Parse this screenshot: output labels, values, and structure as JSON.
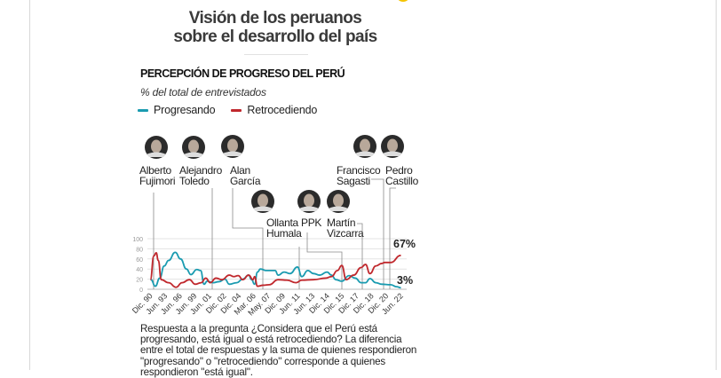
{
  "title_line1": "Visión de los peruanos",
  "title_line2": "sobre el desarrollo del país",
  "chart_data": {
    "type": "line",
    "title": "PERCEPCIÓN DE PROGRESO DEL PERÚ",
    "subtitle": "% del total de entrevistados",
    "ylim": [
      0,
      100
    ],
    "yticks": [
      "0",
      "20",
      "40",
      "60",
      "80",
      "100"
    ],
    "grid": "horizontal",
    "legend_placement": "top-left",
    "x_labels": [
      "Dic. 90",
      "Jun. 93",
      "Jun. 96",
      "Jun. 99",
      "Jun. 01",
      "Dic. 02",
      "Dic. 04",
      "Mar. 06",
      "May. 07",
      "Dic. 09",
      "Jun. 11",
      "Jun. 13",
      "Dic. 14",
      "Dic. 15",
      "Dic. 17",
      "Dic. 18",
      "Dic. 20",
      "Jun. 22"
    ],
    "series": [
      {
        "name": "Progresando",
        "color": "#1a9bb0",
        "end_label": "3%",
        "points": [
          [
            0.04,
            19
          ],
          [
            0.34,
            6
          ],
          [
            0.64,
            22
          ],
          [
            0.94,
            46
          ],
          [
            1.24,
            57
          ],
          [
            1.69,
            73
          ],
          [
            2.05,
            60
          ],
          [
            2.45,
            40
          ],
          [
            2.75,
            29
          ],
          [
            3.15,
            39
          ],
          [
            3.41,
            37
          ],
          [
            3.65,
            10
          ],
          [
            3.86,
            16
          ],
          [
            4.26,
            13
          ],
          [
            4.66,
            15
          ],
          [
            5.06,
            20
          ],
          [
            5.36,
            10
          ],
          [
            5.86,
            13
          ],
          [
            6.27,
            20
          ],
          [
            6.67,
            28
          ],
          [
            6.87,
            19
          ],
          [
            7.07,
            10
          ],
          [
            7.27,
            34
          ],
          [
            7.47,
            40
          ],
          [
            7.87,
            37
          ],
          [
            8.47,
            37
          ],
          [
            8.67,
            28
          ],
          [
            9.08,
            34
          ],
          [
            9.48,
            31
          ],
          [
            9.98,
            44
          ],
          [
            10.28,
            25
          ],
          [
            10.68,
            37
          ],
          [
            11.08,
            31
          ],
          [
            11.49,
            28
          ],
          [
            11.99,
            34
          ],
          [
            12.29,
            28
          ],
          [
            12.59,
            19
          ],
          [
            12.99,
            16
          ],
          [
            13.49,
            27
          ],
          [
            13.9,
            22
          ],
          [
            14.3,
            13
          ],
          [
            14.6,
            13
          ],
          [
            14.9,
            21
          ],
          [
            15.3,
            13
          ],
          [
            15.7,
            10
          ],
          [
            16.31,
            9
          ],
          [
            16.71,
            5
          ],
          [
            17,
            3
          ]
        ]
      },
      {
        "name": "Retrocediendo",
        "color": "#c0282d",
        "end_label": "67%",
        "points": [
          [
            0,
            19
          ],
          [
            0.24,
            66
          ],
          [
            0.4,
            72
          ],
          [
            0.54,
            57
          ],
          [
            0.74,
            19
          ],
          [
            1.24,
            13
          ],
          [
            1.75,
            4
          ],
          [
            2.15,
            13
          ],
          [
            2.65,
            19
          ],
          [
            3.05,
            10
          ],
          [
            3.45,
            13
          ],
          [
            3.76,
            22
          ],
          [
            4.06,
            13
          ],
          [
            4.46,
            22
          ],
          [
            4.86,
            19
          ],
          [
            5.36,
            28
          ],
          [
            5.66,
            25
          ],
          [
            5.96,
            27
          ],
          [
            6.27,
            19
          ],
          [
            6.67,
            28
          ],
          [
            6.97,
            19
          ],
          [
            7.07,
            25
          ],
          [
            7.27,
            6
          ],
          [
            7.67,
            8
          ],
          [
            8.07,
            9
          ],
          [
            8.67,
            19
          ],
          [
            9.28,
            18
          ],
          [
            9.88,
            13
          ],
          [
            10.28,
            18
          ],
          [
            11.08,
            19
          ],
          [
            11.89,
            22
          ],
          [
            12.29,
            25
          ],
          [
            12.69,
            37
          ],
          [
            12.99,
            47
          ],
          [
            13.29,
            19
          ],
          [
            13.8,
            28
          ],
          [
            14.3,
            43
          ],
          [
            14.6,
            49
          ],
          [
            14.9,
            31
          ],
          [
            15.3,
            46
          ],
          [
            15.7,
            51
          ],
          [
            15.9,
            53
          ],
          [
            16.31,
            53
          ],
          [
            17,
            67
          ]
        ]
      }
    ],
    "annotations": [
      {
        "line1": "Alberto",
        "line2": "Fujimori"
      },
      {
        "line1": "Alejandro",
        "line2": "Toledo"
      },
      {
        "line1": "Alan",
        "line2": "García"
      },
      {
        "line1": "Ollanta",
        "line2": "Humala"
      },
      {
        "line1": "PPK",
        "line2": ""
      },
      {
        "line1": "Martín",
        "line2": "Vizcarra"
      },
      {
        "line1": "Francisco",
        "line2": "Sagasti"
      },
      {
        "line1": "Pedro",
        "line2": "Castillo"
      }
    ]
  },
  "note": "Respuesta a la pregunta ¿Considera que el Perú está progresando, está igual o está retrocediendo? La diferencia entre el total de respuestas y la suma de quienes respondieron \"progresando\" o \"retrocediendo\" corresponde a quienes respondieron \"está igual\".",
  "colors": {
    "progresando": "#1a9bb0",
    "retrocediendo": "#c0282d",
    "grid": "#e3e3e3",
    "leader": "#8a8a8a",
    "accent_dot": "#f4c400"
  }
}
